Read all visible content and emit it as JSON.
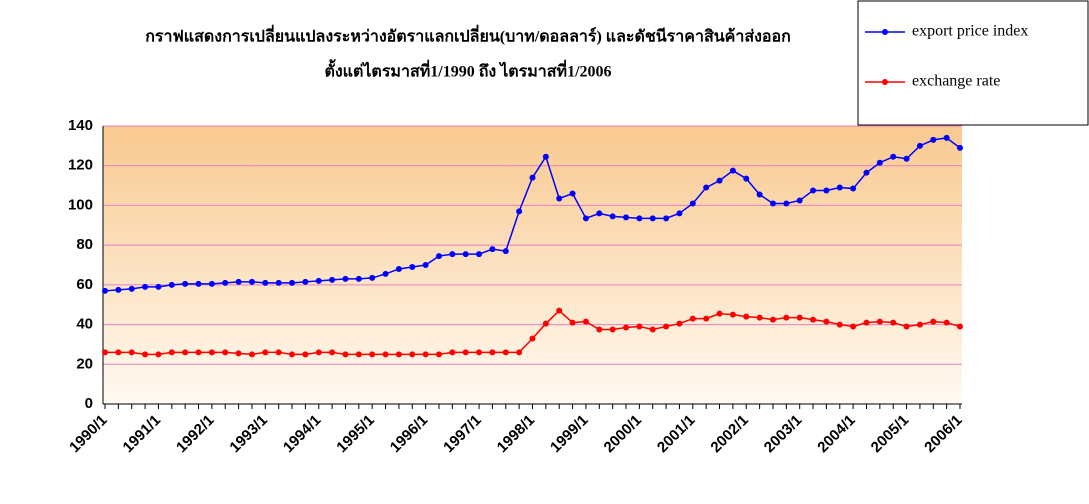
{
  "chart_data": {
    "type": "line",
    "title": "กราฟแสดงการเปลี่ยนแปลงระหว่างอัตราแลกเปลี่ยน(บาท/ดอลลาร์) และดัชนีราคาสินค้าส่งออก",
    "subtitle": "ตั้งแต่ไตรมาสที่1/1990 ถึง ไตรมาสที่1/2006",
    "categories": [
      "1990/1",
      null,
      null,
      null,
      "1991/1",
      null,
      null,
      null,
      "1992/1",
      null,
      null,
      null,
      "1993/1",
      null,
      null,
      null,
      "1994/1",
      null,
      null,
      null,
      "1995/1",
      null,
      null,
      null,
      "1996/1",
      null,
      null,
      null,
      "1997/1",
      null,
      null,
      null,
      "1998/1",
      null,
      null,
      null,
      "1999/1",
      null,
      null,
      null,
      "2000/1",
      null,
      null,
      null,
      "2001/1",
      null,
      null,
      null,
      "2002/1",
      null,
      null,
      null,
      "2003/1",
      null,
      null,
      null,
      "2004/1",
      null,
      null,
      null,
      "2005/1",
      null,
      null,
      null,
      "2006/1"
    ],
    "series": [
      {
        "name": "export price index",
        "color": "#0000ff",
        "values": [
          57,
          57.5,
          58,
          59,
          59,
          60,
          60.5,
          60.5,
          60.5,
          61,
          61.5,
          61.5,
          61,
          61,
          61,
          61.5,
          62,
          62.5,
          63,
          63,
          63.5,
          65.5,
          68,
          69,
          70,
          74.5,
          75.5,
          75.5,
          75.5,
          78,
          77,
          97,
          114,
          124.5,
          103.5,
          106,
          93.5,
          96,
          94.5,
          94,
          93.5,
          93.5,
          93.5,
          96,
          101,
          109,
          112.5,
          117.5,
          113.5,
          105.5,
          101,
          101,
          102.5,
          107.5,
          107.5,
          109,
          108.5,
          116.5,
          121.5,
          124.5,
          123.5,
          130,
          133,
          134,
          129
        ]
      },
      {
        "name": "exchange rate",
        "color": "#ff0000",
        "values": [
          26,
          26,
          26,
          25,
          25,
          26,
          26,
          26,
          26,
          26,
          25.5,
          25,
          26,
          26,
          25,
          25,
          26,
          26,
          25,
          25,
          25,
          25,
          25,
          25,
          25,
          25,
          26,
          26,
          26,
          26,
          26,
          26,
          33,
          40.5,
          47,
          41,
          41.5,
          37.5,
          37.5,
          38.5,
          39,
          37.5,
          39,
          40.5,
          43,
          43,
          45.5,
          45,
          44,
          43.5,
          42.5,
          43.5,
          43.5,
          42.5,
          41.5,
          40,
          39,
          41,
          41.5,
          41,
          39,
          40,
          41.5,
          41,
          39
        ]
      }
    ],
    "ylim": [
      0,
      140
    ],
    "yticks": [
      0,
      20,
      40,
      60,
      80,
      100,
      120,
      140
    ],
    "grid": true,
    "legend": "top-right"
  }
}
